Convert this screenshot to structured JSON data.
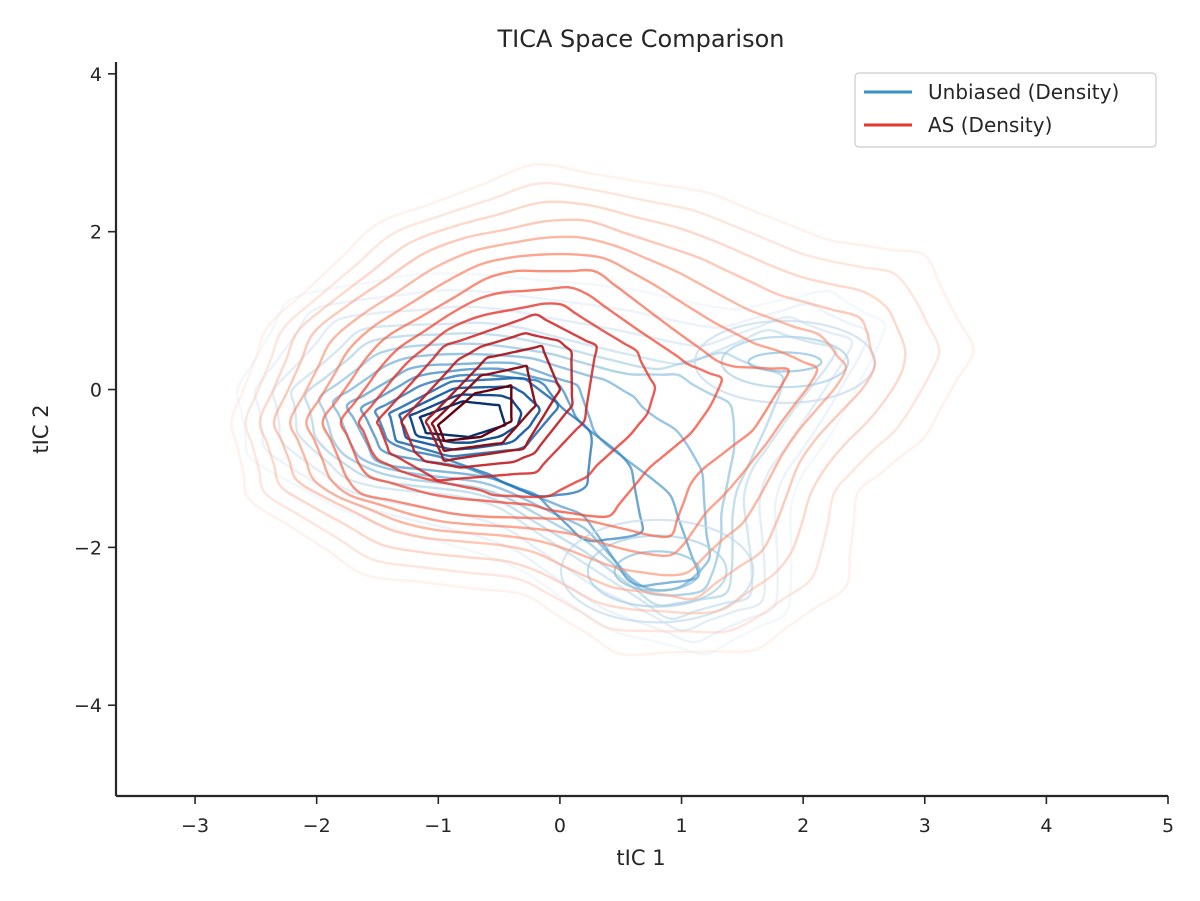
{
  "chart_data": {
    "type": "contour",
    "title": "TICA Space Comparison",
    "xlabel": "tIC 1",
    "ylabel": "tIC 2",
    "xlim": [
      -3.65,
      5.0
    ],
    "ylim": [
      -5.15,
      4.15
    ],
    "x_ticks": [
      -3,
      -2,
      -1,
      0,
      1,
      2,
      3,
      4,
      5
    ],
    "y_ticks": [
      -4,
      -2,
      0,
      2,
      4
    ],
    "x_tick_labels": [
      "−3",
      "−2",
      "−1",
      "0",
      "1",
      "2",
      "3",
      "4",
      "5"
    ],
    "y_tick_labels": [
      "−4",
      "−2",
      "0",
      "2",
      "4"
    ],
    "grid": false,
    "legend_position": "top-right",
    "series": [
      {
        "name": "Unbiased (Density)",
        "color": "#3a8fc7",
        "levels": 14,
        "centers": [
          [
            -1.2,
            -0.35
          ],
          [
            -0.6,
            -0.25
          ],
          [
            -0.4,
            -0.8
          ],
          [
            0.6,
            -1.4
          ],
          [
            0.8,
            -2.3
          ],
          [
            1.9,
            0.35
          ]
        ],
        "contours": [
          {
            "level": 1,
            "path": [
              [
                -2.65,
                0.0
              ],
              [
                -2.2,
                1.2
              ],
              [
                -1.0,
                1.5
              ],
              [
                0.5,
                1.3
              ],
              [
                1.4,
                1.0
              ],
              [
                2.2,
                1.25
              ],
              [
                2.7,
                0.8
              ],
              [
                2.3,
                -0.4
              ],
              [
                1.9,
                -1.3
              ],
              [
                1.9,
                -2.8
              ],
              [
                1.2,
                -3.35
              ],
              [
                0.4,
                -3.05
              ],
              [
                -0.4,
                -2.2
              ],
              [
                -1.7,
                -1.6
              ],
              [
                -2.55,
                -0.9
              ]
            ]
          },
          {
            "level": 4,
            "path": [
              [
                -2.2,
                0.0
              ],
              [
                -1.6,
                0.8
              ],
              [
                -0.5,
                0.85
              ],
              [
                0.4,
                0.5
              ],
              [
                1.0,
                0.3
              ],
              [
                1.7,
                0.75
              ],
              [
                2.3,
                0.5
              ],
              [
                1.9,
                -0.3
              ],
              [
                1.5,
                -1.2
              ],
              [
                1.6,
                -2.6
              ],
              [
                0.9,
                -2.9
              ],
              [
                0.2,
                -2.2
              ],
              [
                -0.6,
                -1.4
              ],
              [
                -1.7,
                -1.2
              ],
              [
                -2.15,
                -0.6
              ]
            ]
          },
          {
            "level": 8,
            "path": [
              [
                -1.75,
                -0.2
              ],
              [
                -1.2,
                0.3
              ],
              [
                -0.4,
                0.35
              ],
              [
                0.15,
                0.05
              ],
              [
                0.3,
                -0.6
              ],
              [
                0.9,
                -1.3
              ],
              [
                1.15,
                -2.4
              ],
              [
                0.6,
                -2.5
              ],
              [
                0.2,
                -1.6
              ],
              [
                -0.6,
                -1.1
              ],
              [
                -1.5,
                -0.95
              ]
            ]
          },
          {
            "level": 11,
            "path": [
              [
                -1.4,
                -0.3
              ],
              [
                -0.9,
                0.1
              ],
              [
                -0.3,
                0.15
              ],
              [
                0.0,
                -0.2
              ],
              [
                -0.3,
                -0.75
              ],
              [
                -0.9,
                -0.85
              ],
              [
                -1.35,
                -0.65
              ]
            ]
          },
          {
            "level": 14,
            "path": [
              [
                -1.15,
                -0.35
              ],
              [
                -0.8,
                -0.15
              ],
              [
                -0.5,
                -0.2
              ],
              [
                -0.45,
                -0.45
              ],
              [
                -0.75,
                -0.6
              ],
              [
                -1.1,
                -0.55
              ]
            ]
          }
        ]
      },
      {
        "name": "AS (Density)",
        "color": "#e03a2e",
        "levels": 14,
        "centers": [
          [
            -0.7,
            -0.35
          ],
          [
            -0.3,
            0.3
          ],
          [
            0.6,
            -0.8
          ],
          [
            1.7,
            0.5
          ],
          [
            1.1,
            -2.2
          ]
        ],
        "contours": [
          {
            "level": 1,
            "path": [
              [
                -2.7,
                -0.4
              ],
              [
                -2.4,
                0.8
              ],
              [
                -1.5,
                2.1
              ],
              [
                -0.2,
                2.85
              ],
              [
                1.2,
                2.5
              ],
              [
                2.2,
                1.9
              ],
              [
                3.0,
                1.7
              ],
              [
                3.4,
                0.5
              ],
              [
                3.0,
                -0.6
              ],
              [
                2.45,
                -1.3
              ],
              [
                2.35,
                -2.5
              ],
              [
                1.6,
                -3.3
              ],
              [
                0.5,
                -3.35
              ],
              [
                -0.3,
                -2.6
              ],
              [
                -1.6,
                -2.35
              ],
              [
                -2.55,
                -1.4
              ]
            ]
          },
          {
            "level": 4,
            "path": [
              [
                -2.35,
                -0.4
              ],
              [
                -2.0,
                0.8
              ],
              [
                -1.0,
                1.85
              ],
              [
                0.1,
                2.2
              ],
              [
                1.1,
                1.7
              ],
              [
                1.8,
                1.2
              ],
              [
                2.5,
                0.9
              ],
              [
                2.6,
                0.2
              ],
              [
                2.0,
                -0.8
              ],
              [
                1.7,
                -2.0
              ],
              [
                1.1,
                -2.65
              ],
              [
                0.4,
                -2.5
              ],
              [
                -0.3,
                -2.0
              ],
              [
                -1.3,
                -1.85
              ],
              [
                -2.15,
                -1.2
              ]
            ]
          },
          {
            "level": 7,
            "path": [
              [
                -1.95,
                -0.4
              ],
              [
                -1.5,
                0.6
              ],
              [
                -0.5,
                1.5
              ],
              [
                0.3,
                1.5
              ],
              [
                0.9,
                0.8
              ],
              [
                1.35,
                0.3
              ],
              [
                1.9,
                0.25
              ],
              [
                1.6,
                -0.5
              ],
              [
                1.1,
                -1.1
              ],
              [
                0.9,
                -1.9
              ],
              [
                0.2,
                -1.65
              ],
              [
                -0.8,
                -1.6
              ],
              [
                -1.7,
                -1.3
              ]
            ]
          },
          {
            "level": 10,
            "path": [
              [
                -1.5,
                -0.4
              ],
              [
                -0.95,
                0.55
              ],
              [
                -0.2,
                0.95
              ],
              [
                0.3,
                0.55
              ],
              [
                0.2,
                -0.4
              ],
              [
                -0.2,
                -1.05
              ],
              [
                -1.0,
                -1.15
              ],
              [
                -1.4,
                -0.8
              ]
            ]
          },
          {
            "level": 12,
            "path": [
              [
                -1.1,
                -0.4
              ],
              [
                -0.6,
                0.4
              ],
              [
                -0.15,
                0.55
              ],
              [
                0.0,
                0.0
              ],
              [
                -0.3,
                -0.75
              ],
              [
                -0.95,
                -0.9
              ]
            ]
          },
          {
            "level": 14,
            "path": [
              [
                -1.0,
                -0.45
              ],
              [
                -0.7,
                -0.05
              ],
              [
                -0.4,
                0.05
              ],
              [
                -0.4,
                -0.4
              ],
              [
                -0.65,
                -0.6
              ],
              [
                -0.95,
                -0.65
              ]
            ]
          }
        ]
      }
    ]
  }
}
